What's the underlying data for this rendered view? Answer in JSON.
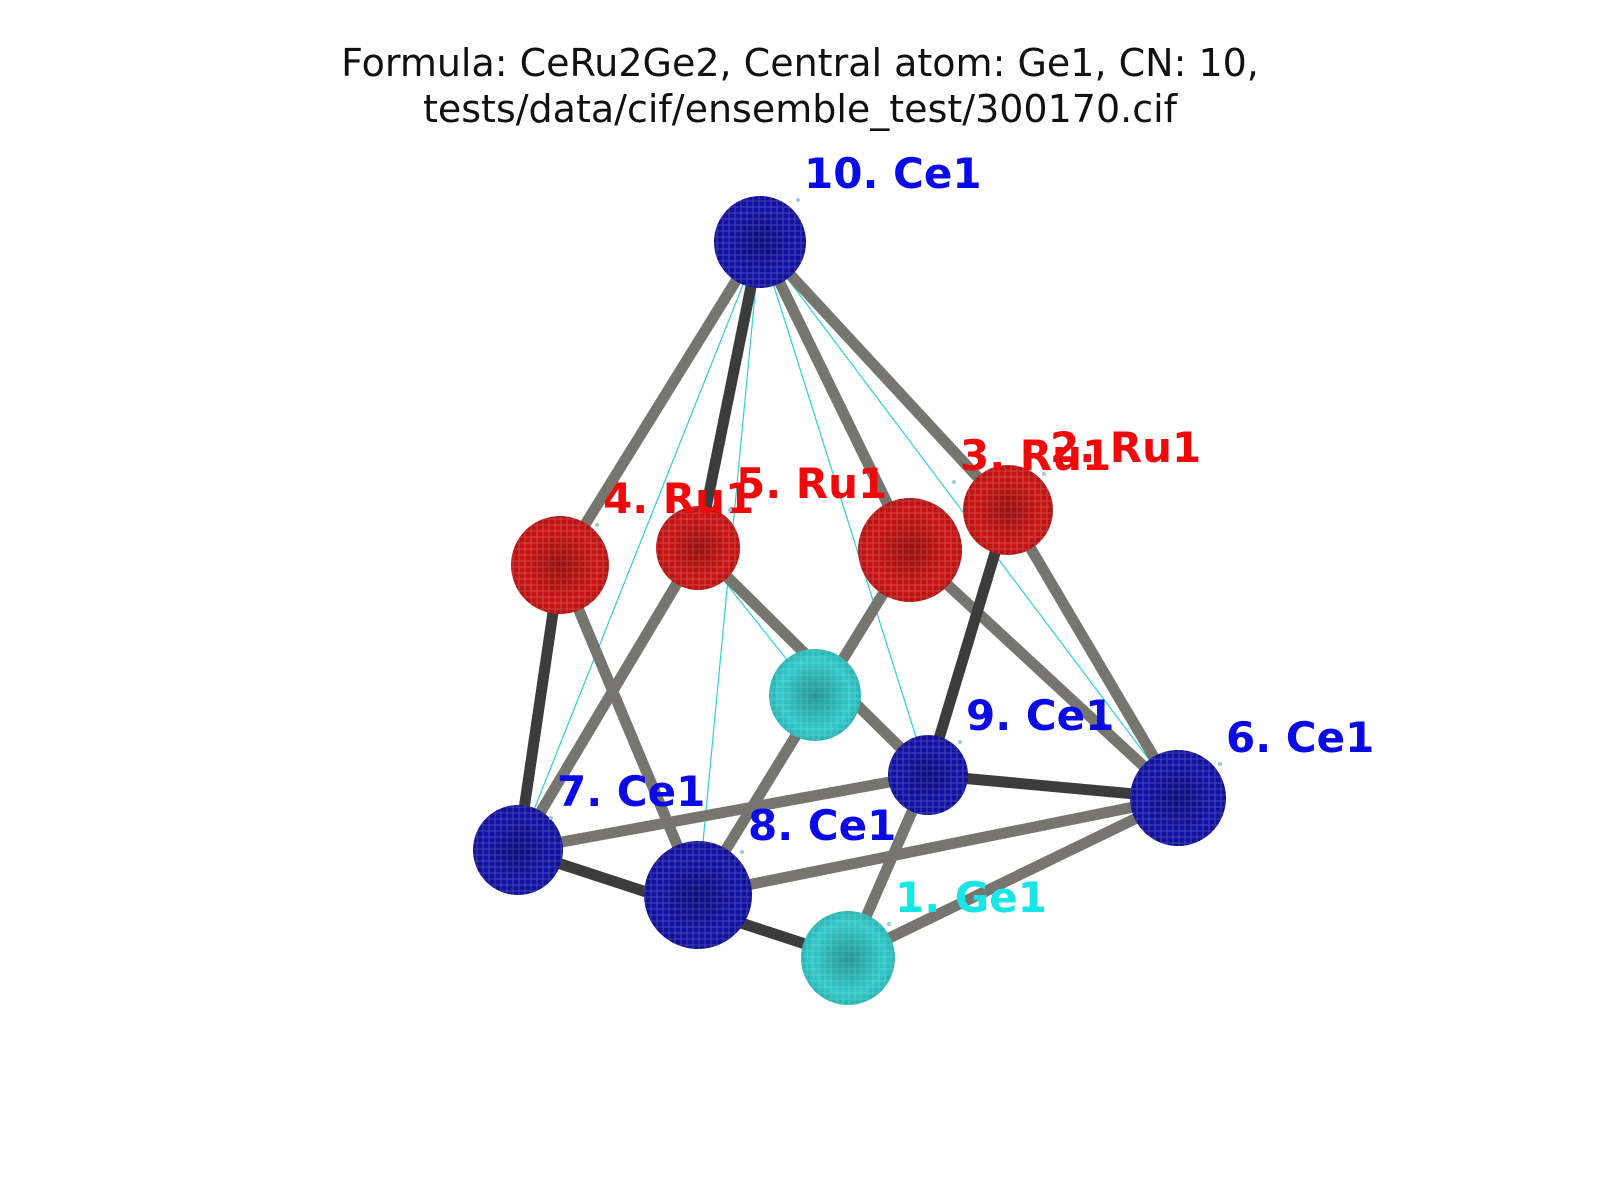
{
  "title": {
    "line1": "Formula: CeRu2Ge2, Central atom: Ge1, CN: 10,",
    "line2": "tests/data/cif/ensemble_test/300170.cif"
  },
  "colors": {
    "Ce": "#1212a8",
    "Ru": "#cc1414",
    "Ge": "#2ec8c8",
    "bond_light": "#76766f",
    "bond_dark": "#3c3c3c",
    "thin_line": "#30d0d0",
    "label_Ce": "#0a0ae6",
    "label_Ru": "#ee0a0a",
    "label_Ge": "#18e6e6"
  },
  "atoms": [
    {
      "id": "1",
      "label": "1. Ge1",
      "element": "Ge"
    },
    {
      "id": "2",
      "label": "2. Ru1",
      "element": "Ru"
    },
    {
      "id": "3",
      "label": "3. Ru1",
      "element": "Ru"
    },
    {
      "id": "4",
      "label": "4. Ru1",
      "element": "Ru"
    },
    {
      "id": "5",
      "label": "5. Ru1",
      "element": "Ru"
    },
    {
      "id": "6",
      "label": "6. Ce1",
      "element": "Ce"
    },
    {
      "id": "7",
      "label": "7. Ce1",
      "element": "Ce"
    },
    {
      "id": "8",
      "label": "8. Ce1",
      "element": "Ce"
    },
    {
      "id": "9",
      "label": "9. Ce1",
      "element": "Ce"
    },
    {
      "id": "10",
      "label": "10. Ce1",
      "element": "Ce"
    },
    {
      "id": "c",
      "label": "",
      "element": "Ge"
    }
  ],
  "bonds": [
    {
      "from": "10",
      "to": "4",
      "shade": "light"
    },
    {
      "from": "10",
      "to": "5",
      "shade": "dark"
    },
    {
      "from": "10",
      "to": "3",
      "shade": "light"
    },
    {
      "from": "10",
      "to": "2",
      "shade": "light"
    },
    {
      "from": "4",
      "to": "7",
      "shade": "dark"
    },
    {
      "from": "4",
      "to": "8",
      "shade": "light"
    },
    {
      "from": "5",
      "to": "7",
      "shade": "light"
    },
    {
      "from": "5",
      "to": "9",
      "shade": "light"
    },
    {
      "from": "3",
      "to": "8",
      "shade": "light"
    },
    {
      "from": "3",
      "to": "6",
      "shade": "light"
    },
    {
      "from": "2",
      "to": "9",
      "shade": "dark"
    },
    {
      "from": "2",
      "to": "6",
      "shade": "light"
    },
    {
      "from": "7",
      "to": "9",
      "shade": "light"
    },
    {
      "from": "7",
      "to": "1",
      "shade": "dark"
    },
    {
      "from": "8",
      "to": "6",
      "shade": "light"
    },
    {
      "from": "9",
      "to": "6",
      "shade": "dark"
    },
    {
      "from": "9",
      "to": "1",
      "shade": "light"
    },
    {
      "from": "1",
      "to": "6",
      "shade": "light"
    }
  ],
  "thin_lines": [
    {
      "from": "10",
      "to": "7"
    },
    {
      "from": "10",
      "to": "8"
    },
    {
      "from": "10",
      "to": "9"
    },
    {
      "from": "10",
      "to": "6"
    },
    {
      "from": "5",
      "to": "c"
    },
    {
      "from": "3",
      "to": "c"
    }
  ]
}
